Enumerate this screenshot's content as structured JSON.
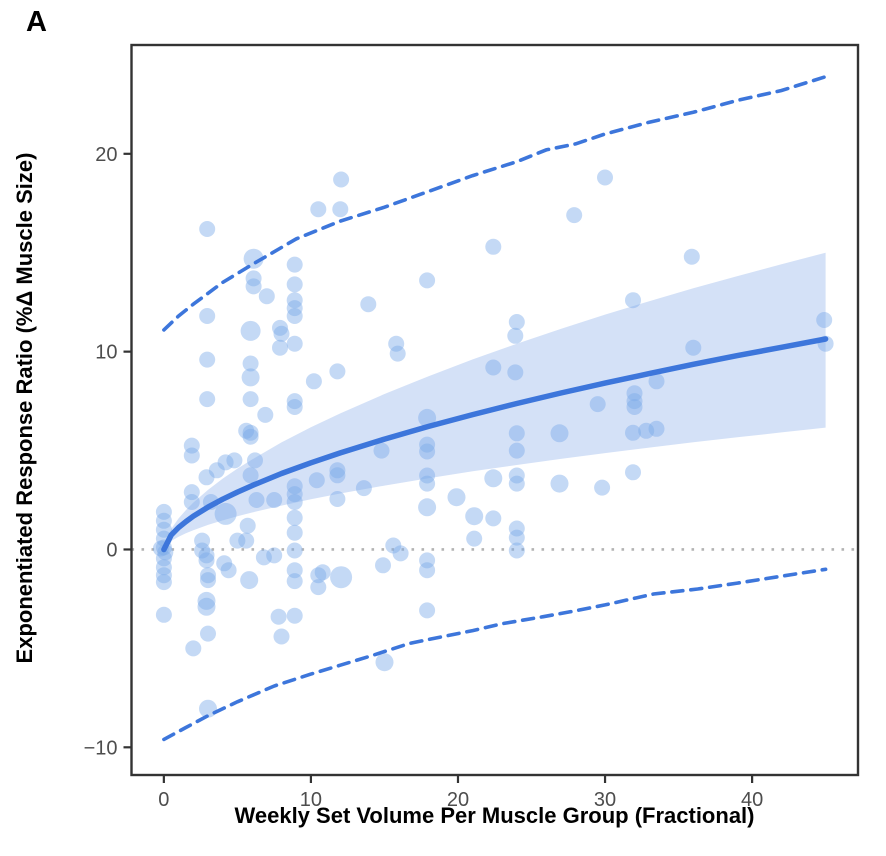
{
  "panel_label": "A",
  "colors": {
    "line_blue": "#3D76DB",
    "band_fill": "#3D76DB",
    "band_opacity": 0.22,
    "point_fill": "#7DAAE8",
    "point_opacity": 0.45,
    "zero_line": "#b3b3b3",
    "axis_line": "#333333",
    "tick_text": "#4d4d4d"
  },
  "chart_data": {
    "type": "scatter",
    "title": "",
    "xlabel": "Weekly Set Volume Per Muscle Group (Fractional)",
    "ylabel": "Exponentiated Response Ratio (%Δ Muscle Size)",
    "xlim": [
      -2.2,
      47.2
    ],
    "ylim": [
      -11.4,
      25.5
    ],
    "x_ticks": [
      0,
      10,
      20,
      30,
      40
    ],
    "y_ticks": [
      -10,
      0,
      10,
      20
    ],
    "grid": "off",
    "legend": "none",
    "zero_reference_y": 0,
    "fit_curve": {
      "x": [
        0,
        0.5,
        1,
        1.5,
        2,
        3,
        4,
        5,
        6,
        8,
        10,
        12,
        15,
        18,
        21,
        24,
        27,
        30,
        33,
        36,
        39,
        42,
        45
      ],
      "y": [
        0,
        0.73,
        1.11,
        1.41,
        1.68,
        2.14,
        2.54,
        2.9,
        3.23,
        3.84,
        4.38,
        4.88,
        5.58,
        6.22,
        6.82,
        7.38,
        7.91,
        8.41,
        8.89,
        9.36,
        9.8,
        10.22,
        10.64
      ]
    },
    "confidence_band": {
      "x": [
        0,
        0.5,
        1,
        1.5,
        2,
        3,
        4,
        5,
        6,
        8,
        10,
        12,
        15,
        18,
        21,
        24,
        27,
        30,
        33,
        36,
        39,
        42,
        45
      ],
      "upper": [
        0,
        1.04,
        1.57,
        1.99,
        2.37,
        3.01,
        3.58,
        4.09,
        4.55,
        5.41,
        6.18,
        6.88,
        7.86,
        8.76,
        9.61,
        10.4,
        11.15,
        11.87,
        12.55,
        13.2,
        13.82,
        14.42,
        15.0
      ],
      "lower": [
        0,
        0.43,
        0.64,
        0.82,
        0.97,
        1.24,
        1.47,
        1.68,
        1.87,
        2.22,
        2.54,
        2.83,
        3.23,
        3.6,
        3.95,
        4.27,
        4.58,
        4.87,
        5.15,
        5.42,
        5.67,
        5.92,
        6.16
      ]
    },
    "prediction_upper": [
      [
        0,
        11.1
      ],
      [
        1,
        11.8
      ],
      [
        2,
        12.4
      ],
      [
        4,
        13.5
      ],
      [
        6,
        14.4
      ],
      [
        9,
        15.7
      ],
      [
        12,
        16.6
      ],
      [
        15,
        17.3
      ],
      [
        18,
        18.1
      ],
      [
        21,
        18.9
      ],
      [
        24,
        19.6
      ],
      [
        26,
        20.2
      ],
      [
        28,
        20.5
      ],
      [
        30,
        21.0
      ],
      [
        33,
        21.6
      ],
      [
        36,
        22.1
      ],
      [
        39,
        22.7
      ],
      [
        42,
        23.2
      ],
      [
        45,
        23.9
      ]
    ],
    "prediction_lower": [
      [
        0,
        -9.6
      ],
      [
        1.5,
        -9.0
      ],
      [
        3,
        -8.4
      ],
      [
        5,
        -7.7
      ],
      [
        7.5,
        -6.9
      ],
      [
        10,
        -6.3
      ],
      [
        12,
        -5.85
      ],
      [
        14,
        -5.4
      ],
      [
        16.7,
        -4.75
      ],
      [
        19,
        -4.4
      ],
      [
        21,
        -4.1
      ],
      [
        23,
        -3.75
      ],
      [
        25.8,
        -3.4
      ],
      [
        28,
        -3.1
      ],
      [
        30,
        -2.8
      ],
      [
        33.3,
        -2.25
      ],
      [
        36.3,
        -2.0
      ],
      [
        39,
        -1.7
      ],
      [
        42,
        -1.35
      ],
      [
        45,
        -1.0
      ]
    ],
    "points": [
      [
        0,
        1.9,
        8
      ],
      [
        0,
        1.45,
        8
      ],
      [
        0,
        1.0,
        8
      ],
      [
        0,
        0.55,
        8
      ],
      [
        0,
        0.1,
        8
      ],
      [
        -0.2,
        0.05,
        8
      ],
      [
        0.1,
        -0.15,
        8
      ],
      [
        0,
        -0.45,
        8
      ],
      [
        0,
        -0.9,
        8
      ],
      [
        0,
        -1.3,
        8
      ],
      [
        0,
        -1.65,
        8
      ],
      [
        0,
        -3.3,
        8
      ],
      [
        1.9,
        5.25,
        8
      ],
      [
        1.9,
        4.75,
        8
      ],
      [
        1.9,
        2.9,
        8
      ],
      [
        1.9,
        2.4,
        8
      ],
      [
        2.95,
        16.2,
        8
      ],
      [
        2.95,
        11.8,
        8
      ],
      [
        2.95,
        9.6,
        8
      ],
      [
        2.95,
        7.6,
        8
      ],
      [
        2.9,
        3.65,
        8
      ],
      [
        3.2,
        2.4,
        8
      ],
      [
        3.6,
        4.0,
        8
      ],
      [
        2.6,
        0.45,
        8
      ],
      [
        2.6,
        -0.05,
        8
      ],
      [
        2.9,
        -0.3,
        8
      ],
      [
        2.9,
        -0.55,
        8
      ],
      [
        3.0,
        -1.3,
        8
      ],
      [
        3.0,
        -1.55,
        8
      ],
      [
        2.9,
        -2.6,
        9
      ],
      [
        2.9,
        -2.9,
        9
      ],
      [
        3.0,
        -4.25,
        8
      ],
      [
        2.0,
        -5.0,
        8
      ],
      [
        3.0,
        -8.05,
        9
      ],
      [
        4.2,
        4.4,
        8
      ],
      [
        4.2,
        1.8,
        11
      ],
      [
        4.1,
        -0.7,
        8
      ],
      [
        4.4,
        -1.05,
        8
      ],
      [
        4.8,
        4.5,
        8
      ],
      [
        5.0,
        0.45,
        8
      ],
      [
        5.6,
        6.0,
        8
      ],
      [
        5.9,
        5.7,
        8
      ],
      [
        5.9,
        11.05,
        10
      ],
      [
        5.9,
        9.4,
        8
      ],
      [
        5.9,
        8.7,
        9
      ],
      [
        5.9,
        7.6,
        8
      ],
      [
        5.9,
        5.9,
        8
      ],
      [
        6.1,
        14.7,
        10
      ],
      [
        6.1,
        13.7,
        8
      ],
      [
        6.1,
        13.3,
        8
      ],
      [
        6.2,
        4.5,
        8
      ],
      [
        5.9,
        3.75,
        8
      ],
      [
        6.3,
        2.5,
        8
      ],
      [
        5.7,
        1.2,
        8
      ],
      [
        5.6,
        0.45,
        8
      ],
      [
        5.8,
        -1.55,
        9
      ],
      [
        6.8,
        -0.4,
        8
      ],
      [
        6.9,
        6.8,
        8
      ],
      [
        7.0,
        12.8,
        8
      ],
      [
        7.9,
        11.2,
        8
      ],
      [
        8.0,
        10.9,
        8
      ],
      [
        7.9,
        10.2,
        8
      ],
      [
        7.5,
        2.5,
        8
      ],
      [
        7.5,
        -0.3,
        8
      ],
      [
        7.8,
        -3.4,
        8
      ],
      [
        8.0,
        -4.4,
        8
      ],
      [
        8.9,
        14.4,
        8
      ],
      [
        8.9,
        13.4,
        8
      ],
      [
        8.9,
        12.6,
        8
      ],
      [
        8.9,
        12.2,
        8
      ],
      [
        8.9,
        11.8,
        8
      ],
      [
        8.9,
        10.4,
        8
      ],
      [
        8.9,
        7.5,
        8
      ],
      [
        8.9,
        7.2,
        8
      ],
      [
        8.9,
        3.2,
        8
      ],
      [
        8.9,
        2.8,
        8
      ],
      [
        8.9,
        2.4,
        8
      ],
      [
        8.9,
        1.6,
        8
      ],
      [
        8.9,
        0.85,
        8
      ],
      [
        8.9,
        -0.05,
        8
      ],
      [
        8.9,
        -1.05,
        8
      ],
      [
        8.9,
        -1.6,
        8
      ],
      [
        8.9,
        -3.35,
        8
      ],
      [
        10.2,
        8.5,
        8
      ],
      [
        10.4,
        3.5,
        8
      ],
      [
        10.5,
        17.2,
        8
      ],
      [
        10.5,
        -1.3,
        8
      ],
      [
        10.5,
        -1.9,
        8
      ],
      [
        10.8,
        -1.15,
        8
      ],
      [
        12.05,
        18.7,
        8
      ],
      [
        12.0,
        17.2,
        8
      ],
      [
        11.8,
        9.0,
        8
      ],
      [
        11.8,
        4.0,
        8
      ],
      [
        11.8,
        3.75,
        8
      ],
      [
        11.8,
        2.55,
        8
      ],
      [
        12.05,
        -1.4,
        11
      ],
      [
        13.6,
        3.1,
        8
      ],
      [
        13.9,
        12.4,
        8
      ],
      [
        14.8,
        5.0,
        8
      ],
      [
        14.9,
        -0.8,
        8
      ],
      [
        15.0,
        -5.7,
        9
      ],
      [
        15.6,
        0.2,
        8
      ],
      [
        15.8,
        10.4,
        8
      ],
      [
        15.9,
        9.9,
        8
      ],
      [
        16.1,
        -0.2,
        8
      ],
      [
        17.9,
        13.6,
        8
      ],
      [
        17.9,
        6.65,
        9
      ],
      [
        17.9,
        5.3,
        8
      ],
      [
        17.9,
        4.95,
        8
      ],
      [
        17.9,
        3.74,
        8
      ],
      [
        17.9,
        3.33,
        8
      ],
      [
        17.9,
        2.13,
        9
      ],
      [
        17.9,
        -0.55,
        8
      ],
      [
        17.9,
        -1.05,
        8
      ],
      [
        17.9,
        -3.08,
        8
      ],
      [
        19.9,
        2.64,
        9
      ],
      [
        21.1,
        1.68,
        9
      ],
      [
        21.1,
        0.55,
        8
      ],
      [
        22.4,
        15.3,
        8
      ],
      [
        22.4,
        9.2,
        8
      ],
      [
        22.4,
        3.6,
        9
      ],
      [
        22.4,
        1.57,
        8
      ],
      [
        24.0,
        11.5,
        8
      ],
      [
        23.9,
        10.8,
        8
      ],
      [
        24.0,
        5.87,
        8
      ],
      [
        24.0,
        5.0,
        8
      ],
      [
        23.9,
        8.95,
        8
      ],
      [
        24.0,
        3.74,
        8
      ],
      [
        24.0,
        3.33,
        8
      ],
      [
        24.0,
        1.06,
        8
      ],
      [
        24.0,
        0.6,
        8
      ],
      [
        24.0,
        -0.05,
        8
      ],
      [
        26.9,
        5.87,
        9
      ],
      [
        26.9,
        3.33,
        9
      ],
      [
        27.9,
        16.9,
        8
      ],
      [
        29.8,
        3.13,
        8
      ],
      [
        29.5,
        7.35,
        8
      ],
      [
        30.0,
        18.8,
        8
      ],
      [
        31.9,
        12.6,
        8
      ],
      [
        32.0,
        7.9,
        8
      ],
      [
        32.0,
        7.5,
        8
      ],
      [
        32.0,
        7.2,
        8
      ],
      [
        31.9,
        5.9,
        8
      ],
      [
        31.9,
        3.9,
        8
      ],
      [
        32.8,
        6.0,
        8
      ],
      [
        33.5,
        8.5,
        8
      ],
      [
        33.5,
        6.1,
        8
      ],
      [
        36.0,
        10.2,
        8
      ],
      [
        35.9,
        14.8,
        8
      ],
      [
        44.9,
        11.6,
        8
      ],
      [
        45.0,
        10.4,
        8
      ]
    ]
  }
}
